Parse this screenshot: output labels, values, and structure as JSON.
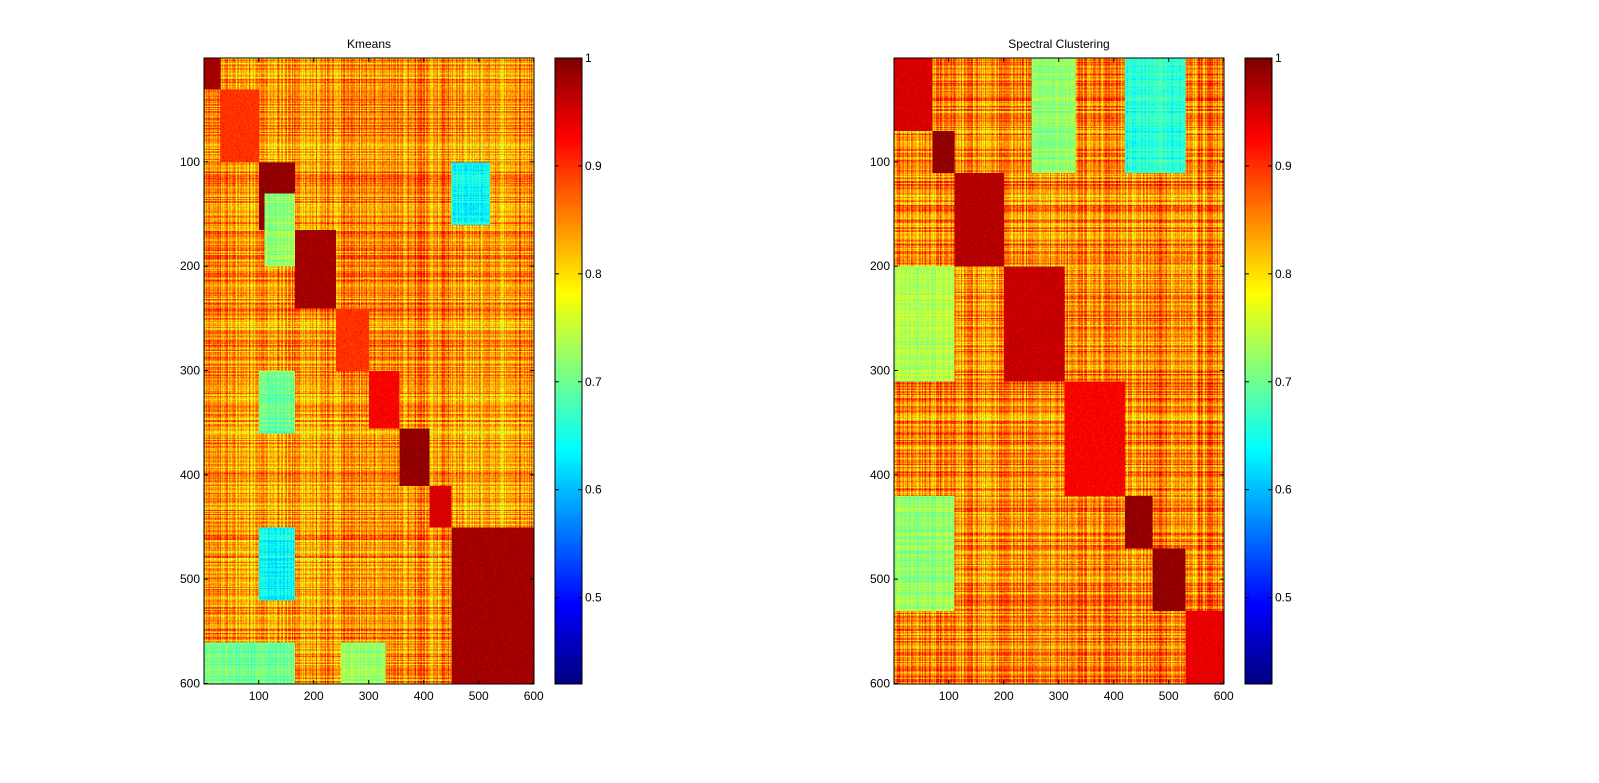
{
  "figure": {
    "background": "#ffffff"
  },
  "chart_data": [
    {
      "type": "heatmap",
      "title": "Kmeans",
      "xlabel": "",
      "ylabel": "",
      "n": 600,
      "x_range": [
        1,
        600
      ],
      "y_range": [
        1,
        600
      ],
      "y_reversed": true,
      "x_ticks": [
        100,
        200,
        300,
        400,
        500,
        600
      ],
      "y_ticks": [
        100,
        200,
        300,
        400,
        500,
        600
      ],
      "colorbar": {
        "range": [
          0.42,
          1
        ],
        "ticks": [
          0.5,
          0.6,
          0.7,
          0.8,
          0.9,
          1
        ],
        "colormap": "jet"
      },
      "clusters": [
        {
          "start": 1,
          "end": 30,
          "diag": 0.98
        },
        {
          "start": 31,
          "end": 100,
          "diag": 0.9
        },
        {
          "start": 101,
          "end": 165,
          "diag": 0.99
        },
        {
          "start": 166,
          "end": 240,
          "diag": 0.98
        },
        {
          "start": 241,
          "end": 300,
          "diag": 0.9
        },
        {
          "start": 301,
          "end": 355,
          "diag": 0.93
        },
        {
          "start": 356,
          "end": 410,
          "diag": 0.99
        },
        {
          "start": 411,
          "end": 450,
          "diag": 0.95
        },
        {
          "start": 451,
          "end": 600,
          "diag": 0.98
        }
      ],
      "between_cluster_level": 0.84,
      "low_blocks": [
        {
          "rows": [
            101,
            160
          ],
          "cols": [
            451,
            520
          ],
          "value": 0.64
        },
        {
          "rows": [
            451,
            520
          ],
          "cols": [
            101,
            165
          ],
          "value": 0.64
        },
        {
          "rows": [
            301,
            360
          ],
          "cols": [
            101,
            165
          ],
          "value": 0.7
        },
        {
          "rows": [
            561,
            600
          ],
          "cols": [
            1,
            165
          ],
          "value": 0.7
        },
        {
          "rows": [
            561,
            600
          ],
          "cols": [
            250,
            330
          ],
          "value": 0.72
        },
        {
          "rows": [
            131,
            200
          ],
          "cols": [
            111,
            165
          ],
          "value": 0.72
        }
      ]
    },
    {
      "type": "heatmap",
      "title": "Spectral Clustering",
      "xlabel": "",
      "ylabel": "",
      "n": 600,
      "x_range": [
        1,
        600
      ],
      "y_range": [
        1,
        600
      ],
      "y_reversed": true,
      "x_ticks": [
        100,
        200,
        300,
        400,
        500,
        600
      ],
      "y_ticks": [
        100,
        200,
        300,
        400,
        500,
        600
      ],
      "colorbar": {
        "range": [
          0.42,
          1
        ],
        "ticks": [
          0.5,
          0.6,
          0.7,
          0.8,
          0.9,
          1
        ],
        "colormap": "jet"
      },
      "clusters": [
        {
          "start": 1,
          "end": 70,
          "diag": 0.95
        },
        {
          "start": 71,
          "end": 110,
          "diag": 0.99
        },
        {
          "start": 111,
          "end": 200,
          "diag": 0.97
        },
        {
          "start": 201,
          "end": 310,
          "diag": 0.96
        },
        {
          "start": 311,
          "end": 420,
          "diag": 0.93
        },
        {
          "start": 421,
          "end": 470,
          "diag": 0.99
        },
        {
          "start": 471,
          "end": 530,
          "diag": 0.99
        },
        {
          "start": 531,
          "end": 600,
          "diag": 0.94
        }
      ],
      "between_cluster_level": 0.85,
      "low_blocks": [
        {
          "rows": [
            1,
            110
          ],
          "cols": [
            421,
            530
          ],
          "value": 0.66
        },
        {
          "rows": [
            421,
            530
          ],
          "cols": [
            1,
            110
          ],
          "value": 0.72
        },
        {
          "rows": [
            1,
            110
          ],
          "cols": [
            251,
            330
          ],
          "value": 0.72
        },
        {
          "rows": [
            201,
            310
          ],
          "cols": [
            1,
            110
          ],
          "value": 0.74
        }
      ]
    }
  ]
}
